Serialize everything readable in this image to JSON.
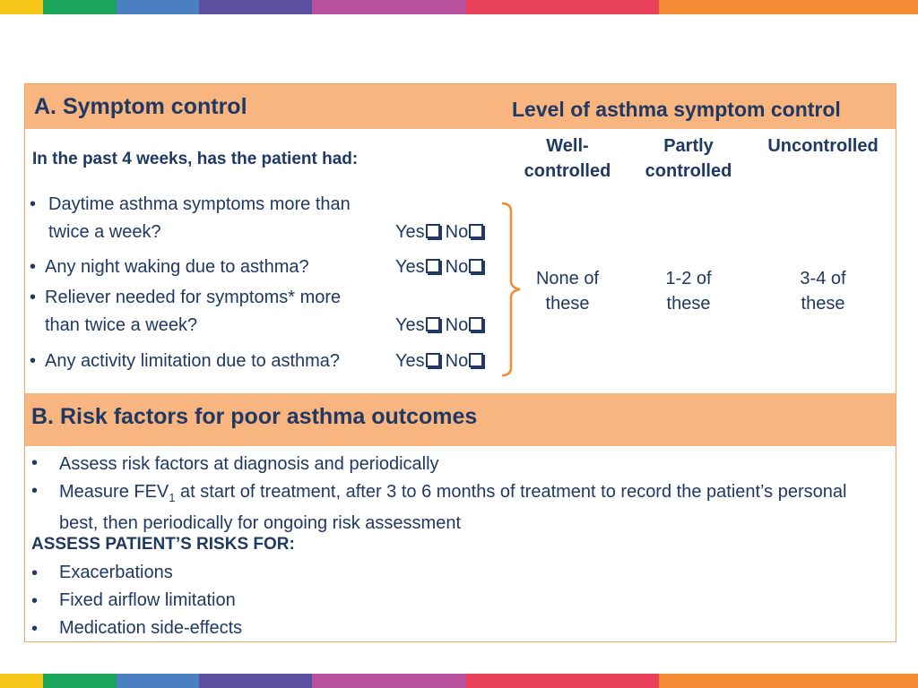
{
  "section_a": {
    "title": "A. Symptom control",
    "level_title": "Level of asthma symptom control",
    "question": "In the past 4 weeks, has the patient had:",
    "columns": [
      "Well-controlled",
      "Partly controlled",
      "Uncontrolled"
    ],
    "items": [
      "Daytime asthma symptoms more than twice a week?",
      "Any night waking due to asthma?",
      "Reliever needed for symptoms* more than twice a week?",
      "Any activity limitation due to asthma?"
    ],
    "options": [
      "Yes",
      "No"
    ],
    "levels": [
      "None of these",
      "1-2 of these",
      "3-4 of these"
    ]
  },
  "section_b": {
    "title": "B. Risk factors for poor asthma outcomes",
    "bullet_1": "Assess risk factors at diagnosis and periodically",
    "bullet_2": {
      "before": "Measure FEV",
      "sub": "1",
      "after": " at start of treatment, after 3 to 6 months of treatment to record the patient’s personal best, then periodically for ongoing risk assessment"
    },
    "subheading": "ASSESS PATIENT’S RISKS FOR:",
    "risks": [
      "Exacerbations",
      "Fixed airflow limitation",
      "Medication side-effects"
    ]
  }
}
